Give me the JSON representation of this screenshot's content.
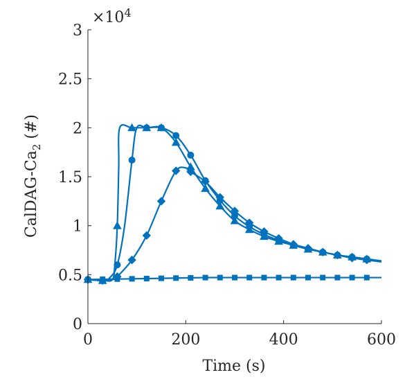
{
  "chart_data": {
    "type": "line",
    "xlabel": "Time (s)",
    "ylabel": "CalDAG-Ca",
    "ylabel_subscript": "2",
    "ylabel_suffix": " (#)",
    "y_exponent_label": "×10",
    "y_exponent_power": "4",
    "xlim": [
      0,
      600
    ],
    "ylim": [
      0,
      30000
    ],
    "x_ticks": [
      0,
      200,
      400,
      600
    ],
    "x_tick_labels": [
      "0",
      "200",
      "400",
      "600"
    ],
    "y_ticks": [
      0,
      5000,
      10000,
      15000,
      20000,
      25000,
      30000
    ],
    "y_tick_labels": [
      "0",
      "0.5",
      "1",
      "1.5",
      "2",
      "2.5",
      "3"
    ],
    "color": "#0072BD",
    "grid": false,
    "series": [
      {
        "marker": "triangle",
        "points": [
          [
            0,
            4500
          ],
          [
            30,
            4400
          ],
          [
            50,
            4500
          ],
          [
            55,
            6000
          ],
          [
            60,
            10000
          ],
          [
            63,
            16000
          ],
          [
            65,
            20000
          ],
          [
            90,
            20000
          ],
          [
            120,
            20000
          ],
          [
            150,
            20000
          ],
          [
            180,
            18500
          ],
          [
            210,
            16000
          ],
          [
            240,
            13800
          ],
          [
            270,
            12000
          ],
          [
            300,
            10500
          ],
          [
            330,
            9600
          ],
          [
            360,
            8900
          ],
          [
            390,
            8400
          ],
          [
            420,
            8000
          ],
          [
            450,
            7600
          ],
          [
            480,
            7300
          ],
          [
            510,
            7000
          ],
          [
            540,
            6800
          ],
          [
            570,
            6600
          ],
          [
            600,
            6400
          ]
        ],
        "markers_x": [
          0,
          30,
          60,
          90,
          120,
          150,
          180,
          210,
          240,
          270,
          300,
          330,
          360,
          390,
          420,
          450,
          480,
          510,
          540,
          570
        ]
      },
      {
        "marker": "circle",
        "points": [
          [
            0,
            4500
          ],
          [
            30,
            4400
          ],
          [
            45,
            4700
          ],
          [
            60,
            6000
          ],
          [
            75,
            10000
          ],
          [
            90,
            16700
          ],
          [
            100,
            20000
          ],
          [
            120,
            20000
          ],
          [
            150,
            20000
          ],
          [
            180,
            19200
          ],
          [
            210,
            17200
          ],
          [
            240,
            14600
          ],
          [
            270,
            12600
          ],
          [
            300,
            11000
          ],
          [
            330,
            9900
          ],
          [
            360,
            9100
          ],
          [
            390,
            8500
          ],
          [
            420,
            8000
          ],
          [
            450,
            7600
          ],
          [
            480,
            7300
          ],
          [
            510,
            7000
          ],
          [
            540,
            6800
          ],
          [
            570,
            6600
          ],
          [
            600,
            6400
          ]
        ],
        "markers_x": [
          0,
          30,
          60,
          90,
          120,
          150,
          180,
          210,
          240,
          270,
          300,
          330,
          360,
          390,
          420,
          450,
          480,
          510,
          540,
          570
        ]
      },
      {
        "marker": "diamond",
        "points": [
          [
            0,
            4500
          ],
          [
            30,
            4400
          ],
          [
            50,
            4500
          ],
          [
            60,
            4800
          ],
          [
            90,
            6500
          ],
          [
            120,
            9000
          ],
          [
            150,
            12500
          ],
          [
            180,
            15600
          ],
          [
            200,
            15900
          ],
          [
            210,
            15500
          ],
          [
            240,
            14500
          ],
          [
            270,
            12900
          ],
          [
            300,
            11500
          ],
          [
            330,
            10300
          ],
          [
            360,
            9400
          ],
          [
            390,
            8700
          ],
          [
            420,
            8100
          ],
          [
            450,
            7700
          ],
          [
            480,
            7300
          ],
          [
            510,
            7000
          ],
          [
            540,
            6700
          ],
          [
            570,
            6500
          ],
          [
            600,
            6300
          ]
        ],
        "markers_x": [
          0,
          30,
          60,
          90,
          120,
          150,
          180,
          210,
          240,
          270,
          300,
          330,
          360,
          390,
          420,
          450,
          480,
          510,
          540,
          570
        ]
      },
      {
        "marker": "square",
        "points": [
          [
            0,
            4500
          ],
          [
            60,
            4550
          ],
          [
            120,
            4600
          ],
          [
            180,
            4650
          ],
          [
            240,
            4700
          ],
          [
            300,
            4700
          ],
          [
            360,
            4700
          ],
          [
            420,
            4700
          ],
          [
            480,
            4700
          ],
          [
            540,
            4700
          ],
          [
            600,
            4700
          ]
        ],
        "markers_x": [
          0,
          30,
          60,
          90,
          120,
          150,
          180,
          210,
          240,
          270,
          300,
          330,
          360,
          390,
          420,
          450,
          480,
          510,
          540,
          570
        ]
      }
    ]
  }
}
